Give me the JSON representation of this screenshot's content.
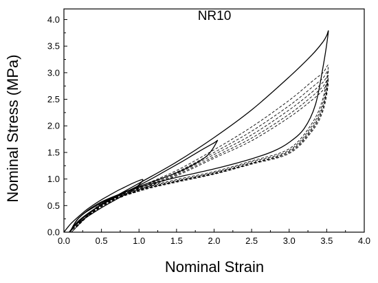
{
  "chart_data": {
    "type": "line",
    "title": "NR10",
    "xlabel": "Nominal Strain",
    "ylabel": "Nominal Stress (MPa)",
    "xlim": [
      0,
      4.0
    ],
    "ylim": [
      0,
      4.2
    ],
    "xticks": [
      "0.0",
      "0.5",
      "1.0",
      "1.5",
      "2.0",
      "2.5",
      "3.0",
      "3.5",
      "4.0"
    ],
    "yticks": [
      "0.0",
      "0.5",
      "1.0",
      "1.5",
      "2.0",
      "2.5",
      "3.0",
      "3.5",
      "4.0"
    ],
    "grid": false,
    "legend": "none",
    "series": [
      {
        "style": "solid",
        "x": [
          0.0,
          0.05,
          0.1,
          0.2,
          0.3,
          0.4,
          0.5,
          0.6,
          0.7,
          0.8,
          0.9,
          1.0,
          1.05,
          1.02,
          0.9,
          0.7,
          0.5,
          0.3,
          0.15,
          0.07
        ],
        "y": [
          0.0,
          0.09,
          0.17,
          0.3,
          0.42,
          0.52,
          0.61,
          0.69,
          0.77,
          0.84,
          0.91,
          0.97,
          0.99,
          0.92,
          0.78,
          0.62,
          0.46,
          0.28,
          0.13,
          0.0
        ]
      },
      {
        "style": "solid",
        "x": [
          0.07,
          0.2,
          0.4,
          0.6,
          0.8,
          1.0,
          1.2,
          1.4,
          1.6,
          1.8,
          2.0,
          2.04,
          1.9,
          1.6,
          1.3,
          1.0,
          0.7,
          0.4,
          0.2,
          0.08
        ],
        "y": [
          0.0,
          0.22,
          0.43,
          0.59,
          0.74,
          0.88,
          1.03,
          1.19,
          1.35,
          1.52,
          1.68,
          1.71,
          1.43,
          1.18,
          1.01,
          0.86,
          0.69,
          0.47,
          0.27,
          0.0
        ]
      },
      {
        "style": "solid",
        "x": [
          0.08,
          0.2,
          0.5,
          1.0,
          1.5,
          2.0,
          2.5,
          3.0,
          3.3,
          3.45,
          3.5,
          3.52,
          3.45,
          3.35,
          3.2,
          3.0,
          2.8,
          2.5,
          2.0,
          1.5,
          1.0,
          0.5,
          0.2,
          0.08
        ],
        "y": [
          0.0,
          0.2,
          0.52,
          0.92,
          1.32,
          1.78,
          2.3,
          2.92,
          3.33,
          3.58,
          3.7,
          3.75,
          3.1,
          2.4,
          1.95,
          1.69,
          1.53,
          1.38,
          1.19,
          1.03,
          0.84,
          0.57,
          0.27,
          0.0
        ]
      },
      {
        "style": "dashed",
        "x": [
          0.07,
          0.5,
          1.0,
          1.5,
          2.0,
          2.5,
          3.0,
          3.3,
          3.45,
          3.52,
          3.45,
          3.3,
          3.0,
          2.5,
          2.0,
          1.5,
          1.0,
          0.5,
          0.1
        ],
        "y": [
          0.0,
          0.52,
          0.85,
          1.16,
          1.55,
          1.98,
          2.48,
          2.83,
          3.0,
          3.12,
          2.52,
          2.04,
          1.57,
          1.34,
          1.14,
          0.99,
          0.81,
          0.54,
          0.0
        ]
      },
      {
        "style": "dashed",
        "x": [
          0.07,
          0.5,
          1.0,
          1.5,
          2.0,
          2.5,
          3.0,
          3.3,
          3.45,
          3.52,
          3.45,
          3.3,
          3.0,
          2.5,
          2.0,
          1.5,
          1.0,
          0.5,
          0.1
        ],
        "y": [
          0.0,
          0.51,
          0.83,
          1.13,
          1.5,
          1.9,
          2.38,
          2.72,
          2.9,
          3.02,
          2.44,
          1.99,
          1.54,
          1.32,
          1.12,
          0.97,
          0.8,
          0.53,
          0.0
        ]
      },
      {
        "style": "dashed",
        "x": [
          0.07,
          0.5,
          1.0,
          1.5,
          2.0,
          2.5,
          3.0,
          3.3,
          3.45,
          3.52,
          3.45,
          3.3,
          3.0,
          2.5,
          2.0,
          1.5,
          1.0,
          0.5,
          0.1
        ],
        "y": [
          0.0,
          0.5,
          0.82,
          1.1,
          1.46,
          1.83,
          2.3,
          2.63,
          2.82,
          2.93,
          2.38,
          1.95,
          1.52,
          1.3,
          1.11,
          0.96,
          0.79,
          0.52,
          0.0
        ]
      },
      {
        "style": "dashed",
        "x": [
          0.07,
          0.5,
          1.0,
          1.5,
          2.0,
          2.5,
          3.0,
          3.3,
          3.45,
          3.52,
          3.45,
          3.3,
          3.0,
          2.5,
          2.0,
          1.5,
          1.0,
          0.5,
          0.1
        ],
        "y": [
          0.0,
          0.49,
          0.8,
          1.08,
          1.42,
          1.77,
          2.22,
          2.55,
          2.74,
          2.86,
          2.33,
          1.92,
          1.5,
          1.29,
          1.1,
          0.95,
          0.78,
          0.51,
          0.0
        ]
      },
      {
        "style": "dashed",
        "x": [
          0.07,
          0.5,
          1.0,
          1.5,
          2.0,
          2.5,
          3.0,
          3.3,
          3.45,
          3.52,
          3.45,
          3.3,
          3.0,
          2.5,
          2.0,
          1.5,
          1.0,
          0.5,
          0.1
        ],
        "y": [
          0.0,
          0.48,
          0.79,
          1.06,
          1.39,
          1.72,
          2.16,
          2.48,
          2.67,
          2.8,
          2.28,
          1.89,
          1.48,
          1.28,
          1.09,
          0.94,
          0.77,
          0.5,
          0.0
        ]
      }
    ]
  }
}
